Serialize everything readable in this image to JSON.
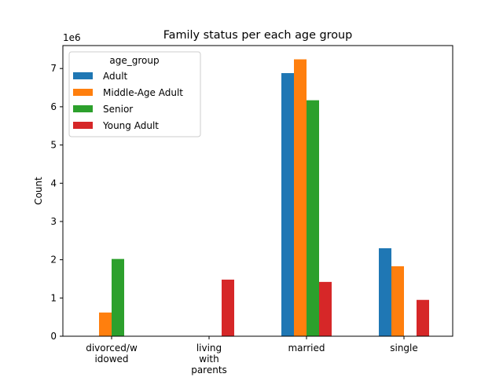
{
  "chart_data": {
    "type": "bar",
    "title": "Family status per each age group",
    "xlabel": "",
    "ylabel": "Count",
    "scale_label": "1e6",
    "categories": [
      [
        "divorced/w",
        "idowed"
      ],
      [
        "living",
        "with",
        "parents"
      ],
      [
        "married"
      ],
      [
        "single"
      ]
    ],
    "yticks": [
      0,
      1,
      2,
      3,
      4,
      5,
      6,
      7
    ],
    "ylim": [
      0,
      7.6
    ],
    "grid": false,
    "legend": {
      "title": "age_group",
      "position": "top-left"
    },
    "series": [
      {
        "name": "Adult",
        "color": "#1f77b4",
        "values": [
          0,
          0,
          6.88,
          2.3
        ]
      },
      {
        "name": "Middle-Age Adult",
        "color": "#ff7f0e",
        "values": [
          0.62,
          0,
          7.24,
          1.83
        ]
      },
      {
        "name": "Senior",
        "color": "#2ca02c",
        "values": [
          2.02,
          0,
          6.17,
          0
        ]
      },
      {
        "name": "Young Adult",
        "color": "#d62728",
        "values": [
          0,
          1.48,
          1.42,
          0.95
        ]
      }
    ]
  }
}
